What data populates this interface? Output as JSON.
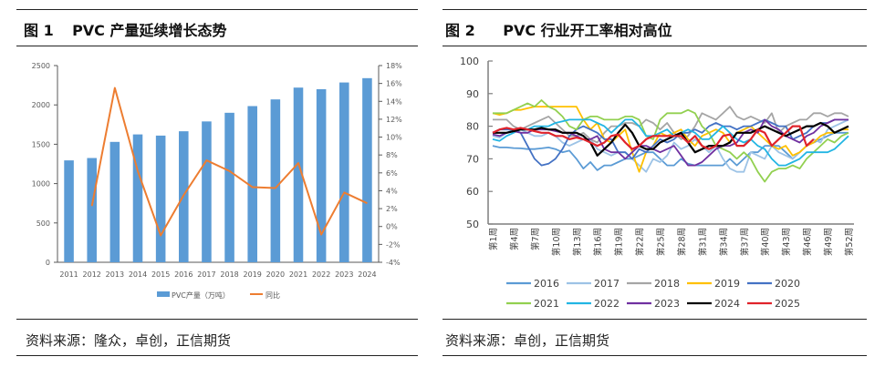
{
  "figure1": {
    "number": "图 1",
    "title": "PVC 产量延续增长态势",
    "source": "资料来源：隆众，卓创，正信期货"
  },
  "figure2": {
    "number": "图 2",
    "title": "PVC 行业开工率相对高位",
    "source": "资料来源：卓创，正信期货"
  },
  "chart_data": [
    {
      "type": "bar",
      "title": "PVC 产量延续增长态势",
      "categories": [
        "2011",
        "2012",
        "2013",
        "2014",
        "2015",
        "2016",
        "2017",
        "2018",
        "2019",
        "2020",
        "2021",
        "2022",
        "2023",
        "2024"
      ],
      "series": [
        {
          "name": "PVC产量（万吨）",
          "type": "bar",
          "axis": "left",
          "color": "#5B9BD5",
          "values": [
            1295,
            1325,
            1530,
            1625,
            1610,
            1665,
            1790,
            1900,
            1985,
            2070,
            2220,
            2200,
            2285,
            2340
          ]
        },
        {
          "name": "同比",
          "type": "line",
          "axis": "right",
          "color": "#ED7D31",
          "values": [
            null,
            2.3,
            15.5,
            6.2,
            -1.0,
            3.5,
            7.4,
            6.2,
            4.4,
            4.3,
            7.1,
            -0.9,
            3.8,
            2.6
          ]
        }
      ],
      "yleft": {
        "lim": [
          0,
          2500
        ],
        "ticks": [
          "0",
          "500",
          "1000",
          "1500",
          "2000",
          "2500"
        ],
        "tick_values": [
          0,
          500,
          1000,
          1500,
          2000,
          2500
        ]
      },
      "yright": {
        "lim": [
          -4,
          18
        ],
        "ticks": [
          "-4%",
          "-2%",
          "0%",
          "2%",
          "4%",
          "6%",
          "8%",
          "10%",
          "12%",
          "14%",
          "16%",
          "18%"
        ],
        "tick_values": [
          -4,
          -2,
          0,
          2,
          4,
          6,
          8,
          10,
          12,
          14,
          16,
          18
        ]
      },
      "legend": [
        "PVC产量（万吨）",
        "同比"
      ],
      "legend_position": "bottom",
      "grid": false
    },
    {
      "type": "line",
      "title": "PVC 行业开工率相对高位",
      "x": [
        1,
        2,
        3,
        4,
        5,
        6,
        7,
        8,
        9,
        10,
        11,
        12,
        13,
        14,
        15,
        16,
        17,
        18,
        19,
        20,
        21,
        22,
        23,
        24,
        25,
        26,
        27,
        28,
        29,
        30,
        31,
        32,
        33,
        34,
        35,
        36,
        37,
        38,
        39,
        40,
        41,
        42,
        43,
        44,
        45,
        46,
        47,
        48,
        49,
        50,
        51,
        52
      ],
      "x_tick_labels": [
        "第1周",
        "第4周",
        "第7周",
        "第10周",
        "第13周",
        "第16周",
        "第19周",
        "第22周",
        "第25周",
        "第28周",
        "第31周",
        "第34周",
        "第37周",
        "第40周",
        "第43周",
        "第46周",
        "第49周",
        "第52周"
      ],
      "x_tick_weeks": [
        1,
        4,
        7,
        10,
        13,
        16,
        19,
        22,
        25,
        28,
        31,
        34,
        37,
        40,
        43,
        46,
        49,
        52
      ],
      "ylim": [
        50,
        100
      ],
      "y_ticks": [
        "50",
        "60",
        "70",
        "80",
        "90",
        "100"
      ],
      "y_tick_values": [
        50,
        60,
        70,
        80,
        90,
        100
      ],
      "legend_position": "bottom",
      "grid": false,
      "series": [
        {
          "name": "2016",
          "color": "#5B9BD5",
          "values": [
            74,
            73.5,
            73.5,
            73.3,
            73.2,
            73,
            73,
            73.2,
            73.5,
            73,
            72,
            72.5,
            70,
            67,
            69,
            66.5,
            68,
            68,
            69,
            70,
            70,
            71,
            72,
            72,
            70,
            68,
            68,
            70,
            68.5,
            68,
            68,
            68,
            68,
            68,
            70,
            68,
            70,
            72,
            72,
            74,
            74,
            74,
            72,
            70,
            72,
            74,
            75,
            76,
            77,
            78,
            78,
            78
          ]
        },
        {
          "name": "2017",
          "color": "#9DC3E6",
          "values": [
            77,
            76.5,
            78,
            79,
            79,
            78,
            77,
            77,
            78,
            77,
            75,
            74,
            75,
            76,
            76,
            73,
            72,
            71,
            72,
            72,
            70,
            68,
            66,
            70,
            69,
            71,
            75,
            73,
            74,
            76,
            74,
            72,
            74,
            70,
            67,
            66,
            66,
            72,
            71,
            70,
            74,
            72,
            71,
            70,
            72,
            74,
            76,
            75,
            79,
            80,
            81,
            82
          ]
        },
        {
          "name": "2018",
          "color": "#A5A5A5",
          "values": [
            82,
            82,
            82,
            80,
            79,
            80,
            81,
            82,
            83,
            81,
            79,
            77,
            77,
            78,
            76,
            75,
            78,
            80,
            80,
            81,
            81,
            80,
            82,
            81,
            79,
            81,
            78,
            76,
            77,
            80,
            84,
            83,
            82,
            84,
            86,
            83,
            82,
            83,
            82,
            81,
            84,
            78,
            80,
            81,
            82,
            82,
            84,
            84,
            83,
            84,
            84,
            83
          ]
        },
        {
          "name": "2019",
          "color": "#FFC000",
          "values": [
            84,
            83.5,
            84,
            85,
            85,
            85.5,
            86,
            86,
            86,
            86,
            86,
            86,
            86,
            82,
            79,
            81,
            76,
            75,
            77,
            79,
            72,
            66,
            72,
            74,
            78,
            77,
            78,
            79,
            76,
            74,
            77,
            78,
            79,
            78,
            75,
            78,
            79,
            80,
            78,
            76,
            74,
            73,
            74,
            71,
            72,
            74,
            75,
            77,
            78,
            78,
            79,
            79
          ]
        },
        {
          "name": "2020",
          "color": "#4472C4",
          "values": [
            78,
            79,
            79,
            79,
            78,
            74,
            70,
            68,
            68.5,
            70,
            73,
            77,
            79,
            80,
            79,
            78,
            76,
            76,
            72,
            72,
            70,
            73,
            72,
            74,
            76,
            75,
            76,
            78,
            78,
            79,
            78,
            80,
            81,
            80,
            80,
            79,
            80,
            80,
            81,
            82,
            81,
            80,
            80,
            76,
            77,
            78,
            80,
            81,
            81,
            82,
            82,
            82
          ]
        },
        {
          "name": "2021",
          "color": "#92D050",
          "values": [
            84,
            84,
            84,
            85,
            86,
            87,
            86,
            88,
            86,
            85,
            83,
            80,
            79,
            82,
            83,
            83,
            82,
            82,
            82,
            83,
            83,
            82,
            77,
            76,
            82,
            84,
            84,
            84,
            85,
            84,
            80,
            78,
            74,
            73,
            72,
            70,
            72,
            70,
            66,
            63,
            66,
            67,
            67,
            68,
            67,
            70,
            72,
            74,
            76,
            75,
            77,
            78
          ]
        },
        {
          "name": "2022",
          "color": "#22B5E3",
          "values": [
            76,
            75.5,
            77,
            78,
            79,
            79,
            80,
            80,
            80,
            81,
            81.5,
            82,
            82,
            82,
            82,
            81,
            80,
            78,
            80,
            82,
            82,
            80,
            77,
            77,
            78,
            79,
            77,
            78,
            79,
            78,
            76,
            76,
            78,
            80,
            78,
            76,
            75,
            76,
            74,
            73,
            70,
            68,
            68,
            69,
            70,
            72,
            72,
            72,
            72,
            73,
            75,
            77
          ]
        },
        {
          "name": "2023",
          "color": "#7030A0",
          "values": [
            77.5,
            77,
            78,
            78.5,
            78,
            78,
            79,
            79,
            79,
            78.5,
            78,
            78,
            77,
            76,
            76,
            77,
            73,
            72,
            72,
            70,
            72,
            74,
            74,
            73,
            72,
            73,
            74,
            71,
            68,
            68,
            69,
            71,
            73,
            74,
            74,
            75,
            78,
            79,
            78,
            82,
            80,
            79,
            77,
            76,
            75,
            77,
            78,
            80,
            81,
            82,
            82,
            82
          ]
        },
        {
          "name": "2024",
          "color": "#000000",
          "values": [
            78,
            78,
            78,
            78.5,
            79,
            79,
            79,
            79.5,
            79,
            79,
            78,
            78,
            78,
            77,
            75,
            71,
            73,
            75,
            78,
            80.5,
            78,
            74,
            73,
            73,
            75,
            76,
            77,
            78,
            75,
            72,
            73,
            74,
            74,
            74,
            75,
            78,
            78,
            78,
            79,
            80,
            79,
            78,
            77,
            78,
            79,
            80,
            80,
            81,
            80,
            78,
            79,
            80
          ]
        },
        {
          "name": "2025",
          "color": "#E0232B",
          "values": [
            78,
            79,
            79.5,
            79,
            79.5,
            79,
            78.5,
            78,
            78,
            77,
            77,
            76,
            76.5,
            76,
            75,
            74,
            75,
            77,
            77.5,
            75,
            73,
            74,
            76,
            77,
            77,
            77,
            77,
            77,
            75,
            77,
            74,
            73,
            74,
            77,
            77.5,
            74,
            74,
            76,
            79,
            78,
            74,
            76,
            78,
            80,
            80,
            74,
            76,
            null,
            null,
            null,
            null,
            null
          ]
        }
      ]
    }
  ]
}
